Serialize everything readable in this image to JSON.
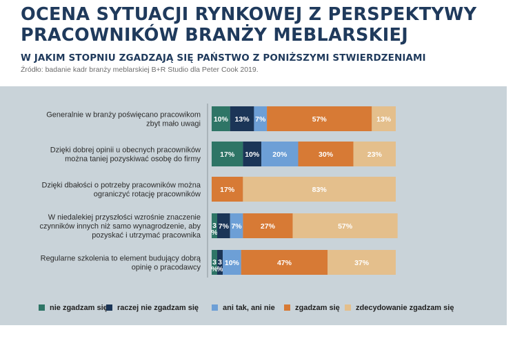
{
  "header": {
    "title_line1": "OCENA SYTUACJI RYNKOWEJ Z PERSPEKTYWY",
    "title_line2": "PRACOWNIKÓW BRANŻY MEBLARSKIEJ",
    "subtitle": "W JAKIM STOPNIU ZGADZAJĄ SIĘ PAŃSTWO Z PONIŻSZYMI STWIERDZENIAMI",
    "source": "Źródło: badanie kadr branży meblarskiej B+R Studio dla Peter Cook 2019."
  },
  "chart_data": {
    "type": "bar",
    "orientation": "horizontal",
    "stacked": true,
    "unit": "%",
    "categories": [
      [
        "Generalnie w branży poświęcano pracowikom",
        "zbyt mało uwagi"
      ],
      [
        "Dzięki dobrej opinii u obecnych pracowników",
        "można taniej pozyskiwać osobę do firmy"
      ],
      [
        "Dzięki dbałości o potrzeby pracowników można",
        "ograniczyć rotację pracowników"
      ],
      [
        "W niedalekiej przyszłości wzrośnie znaczenie",
        "czynników innych niż samo wynagrodzenie, aby",
        "pozyskać i utrzymać pracownika"
      ],
      [
        "Regularne szkolenia to element budujący dobrą",
        "opinię o pracodawcy"
      ]
    ],
    "series": [
      {
        "name": "nie zgadzam się",
        "color": "#2e7566",
        "values": [
          10,
          17,
          0,
          3,
          3
        ]
      },
      {
        "name": "raczej nie zgadzam się",
        "color": "#1b3557",
        "values": [
          13,
          10,
          0,
          7,
          3
        ]
      },
      {
        "name": "ani tak, ani nie",
        "color": "#6d9fd6",
        "values": [
          7,
          20,
          0,
          7,
          10
        ]
      },
      {
        "name": "zgadzam się",
        "color": "#d77a35",
        "values": [
          57,
          30,
          17,
          27,
          47
        ]
      },
      {
        "name": "zdecydowanie zgadzam się",
        "color": "#e4bf8c",
        "values": [
          13,
          23,
          83,
          57,
          37
        ]
      }
    ],
    "label_colors": [
      "#ffffff",
      "#ffffff",
      "#ffffff",
      "#ffffff",
      "#ffffff"
    ],
    "xlim": [
      0,
      100
    ],
    "legend_position": "bottom"
  }
}
